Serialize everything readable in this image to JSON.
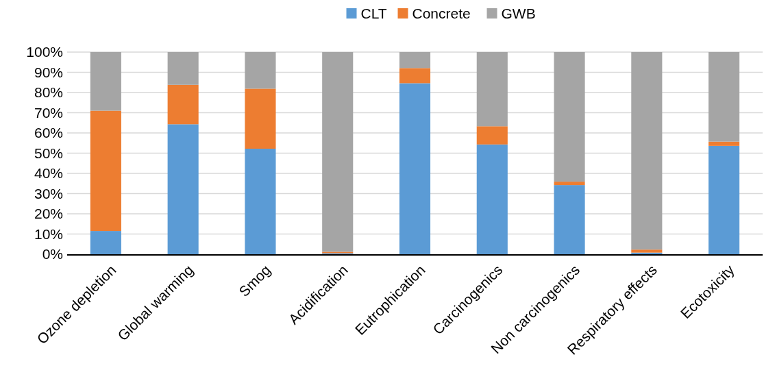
{
  "chart_data": {
    "type": "bar",
    "stacked": true,
    "categories": [
      "Ozone depletion",
      "Global warming",
      "Smog",
      "Acidification",
      "Eutrophication",
      "Carcinogenics",
      "Non carcinogenics",
      "Respiratory effects",
      "Ecotoxicity"
    ],
    "series": [
      {
        "name": "CLT",
        "color": "#5b9bd5",
        "values": [
          11.5,
          64.3,
          52.2,
          0.5,
          84.6,
          54.3,
          34.2,
          0.8,
          53.6
        ]
      },
      {
        "name": "Concrete",
        "color": "#ed7d31",
        "values": [
          59.5,
          19.5,
          29.7,
          0.7,
          7.5,
          9.0,
          1.7,
          1.5,
          2.1
        ]
      },
      {
        "name": "GWB",
        "color": "#a5a5a5",
        "values": [
          29.0,
          16.2,
          18.1,
          98.8,
          7.9,
          36.7,
          64.1,
          97.7,
          44.3
        ]
      }
    ],
    "ylim": [
      0,
      100
    ],
    "yticks": [
      {
        "value": 0,
        "label": "0%"
      },
      {
        "value": 10,
        "label": "10%"
      },
      {
        "value": 20,
        "label": "20%"
      },
      {
        "value": 30,
        "label": "30%"
      },
      {
        "value": 40,
        "label": "40%"
      },
      {
        "value": 50,
        "label": "50%"
      },
      {
        "value": 60,
        "label": "60%"
      },
      {
        "value": 70,
        "label": "70%"
      },
      {
        "value": 80,
        "label": "80%"
      },
      {
        "value": 90,
        "label": "90%"
      },
      {
        "value": 100,
        "label": "100%"
      }
    ],
    "grid": "y",
    "legend": "top"
  }
}
